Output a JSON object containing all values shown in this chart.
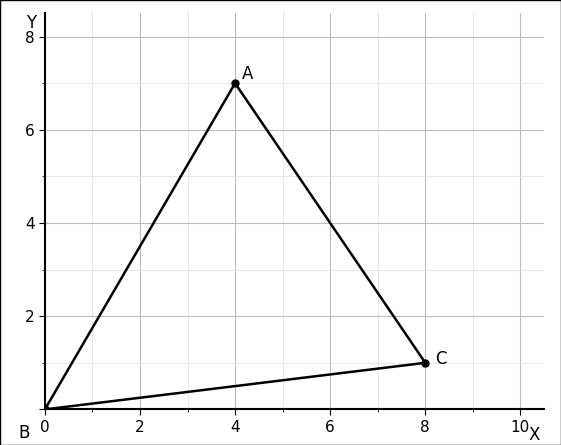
{
  "points": {
    "A": [
      4,
      7
    ],
    "B": [
      0,
      0
    ],
    "C": [
      8,
      1
    ]
  },
  "triangle_color": "#000000",
  "triangle_linewidth": 1.8,
  "dot_color": "#000000",
  "dot_size": 5,
  "label_offsets": {
    "A": [
      0.15,
      0.2
    ],
    "B": [
      -0.55,
      -0.5
    ],
    "C": [
      0.2,
      0.08
    ]
  },
  "label_fontsize": 12,
  "axis_label_fontsize": 12,
  "xlim": [
    0,
    10.5
  ],
  "ylim": [
    0,
    8.5
  ],
  "xticks": [
    0,
    2,
    4,
    6,
    8,
    10
  ],
  "yticks": [
    0,
    2,
    4,
    6,
    8
  ],
  "minor_ticks": 1,
  "grid_major_color": "#bbbbbb",
  "grid_minor_color": "#dddddd",
  "grid_linewidth_major": 0.8,
  "grid_linewidth_minor": 0.5,
  "background_color": "#ffffff",
  "axis_linewidth": 1.5,
  "xlabel": "X",
  "ylabel": "Y",
  "tick_fontsize": 11,
  "border_color": "#000000",
  "border_linewidth": 1.0
}
